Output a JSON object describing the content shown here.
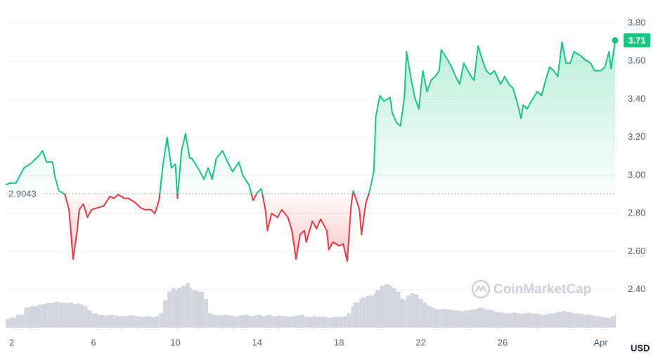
{
  "chart_data": {
    "type": "line",
    "currency": "USD",
    "watermark": "CoinMarketCap",
    "reference": 2.9043,
    "color_up": "#16c784",
    "color_down": "#ea3943",
    "volume_color": "#d3d6dc",
    "grid": true,
    "xlim": [
      1.7,
      31.5
    ],
    "ylim": [
      2.2,
      3.88
    ],
    "volume_ylim": [
      0,
      70
    ],
    "xticks": [
      2,
      6,
      10,
      14,
      18,
      22,
      26,
      {
        "value": 30.8,
        "label": "Apr"
      }
    ],
    "yticks": [
      {
        "value": 2.4,
        "label": "2.40"
      },
      {
        "value": 2.6,
        "label": "2.60"
      },
      {
        "value": 2.8,
        "label": "2.80"
      },
      {
        "value": 3.0,
        "label": "3.00"
      },
      {
        "value": 3.2,
        "label": "3.20"
      },
      {
        "value": 3.4,
        "label": "3.40"
      },
      {
        "value": 3.6,
        "label": "3.60"
      },
      {
        "value": 3.8,
        "label": "3.80"
      }
    ],
    "x": [
      1.7,
      1.9,
      2.2,
      2.6,
      2.9,
      3.3,
      3.5,
      3.7,
      4.0,
      4.1,
      4.3,
      4.6,
      4.8,
      5.0,
      5.2,
      5.3,
      5.5,
      5.7,
      5.9,
      6.2,
      6.5,
      6.8,
      7.0,
      7.2,
      7.5,
      7.7,
      8.0,
      8.3,
      8.5,
      8.8,
      9.0,
      9.2,
      9.4,
      9.6,
      9.8,
      10.0,
      10.1,
      10.3,
      10.5,
      10.7,
      10.8,
      11.1,
      11.4,
      11.6,
      11.8,
      12.0,
      12.3,
      12.6,
      12.8,
      13.1,
      13.3,
      13.6,
      13.8,
      14.0,
      14.2,
      14.4,
      14.5,
      14.7,
      15.0,
      15.2,
      15.5,
      15.7,
      15.9,
      16.1,
      16.3,
      16.4,
      16.7,
      16.9,
      17.1,
      17.4,
      17.5,
      17.7,
      18.0,
      18.2,
      18.4,
      18.6,
      18.7,
      19.0,
      19.1,
      19.3,
      19.5,
      19.7,
      19.8,
      20.0,
      20.2,
      20.5,
      20.6,
      20.8,
      21.0,
      21.2,
      21.3,
      21.5,
      21.7,
      21.9,
      22.1,
      22.3,
      22.5,
      22.7,
      22.9,
      23.0,
      23.3,
      23.5,
      23.7,
      23.9,
      24.1,
      24.4,
      24.6,
      24.8,
      25.0,
      25.2,
      25.4,
      25.6,
      25.9,
      26.1,
      26.3,
      26.5,
      26.7,
      26.9,
      27.0,
      27.2,
      27.4,
      27.7,
      27.9,
      28.1,
      28.3,
      28.5,
      28.7,
      28.9,
      29.1,
      29.3,
      29.5,
      29.8,
      30.0,
      30.3,
      30.5,
      30.8,
      31.0,
      31.2,
      31.3,
      31.5
    ],
    "values": [
      2.95,
      2.96,
      2.96,
      3.04,
      3.06,
      3.1,
      3.13,
      3.07,
      3.07,
      3.0,
      2.92,
      2.9,
      2.82,
      2.56,
      2.71,
      2.82,
      2.85,
      2.78,
      2.82,
      2.83,
      2.84,
      2.89,
      2.88,
      2.9,
      2.88,
      2.88,
      2.86,
      2.83,
      2.82,
      2.82,
      2.8,
      2.87,
      3.06,
      3.2,
      3.04,
      3.06,
      2.88,
      3.13,
      3.22,
      3.09,
      3.09,
      3.04,
      2.98,
      3.04,
      2.98,
      3.09,
      3.13,
      3.06,
      3.02,
      3.07,
      3.0,
      2.95,
      2.87,
      2.91,
      2.93,
      2.82,
      2.71,
      2.8,
      2.78,
      2.82,
      2.78,
      2.71,
      2.56,
      2.69,
      2.71,
      2.65,
      2.76,
      2.72,
      2.77,
      2.71,
      2.61,
      2.65,
      2.63,
      2.64,
      2.55,
      2.85,
      2.92,
      2.82,
      2.69,
      2.85,
      2.92,
      3.02,
      3.31,
      3.42,
      3.39,
      3.41,
      3.33,
      3.28,
      3.26,
      3.41,
      3.65,
      3.52,
      3.41,
      3.35,
      3.55,
      3.44,
      3.5,
      3.52,
      3.55,
      3.66,
      3.61,
      3.57,
      3.52,
      3.48,
      3.59,
      3.53,
      3.5,
      3.68,
      3.61,
      3.55,
      3.53,
      3.55,
      3.48,
      3.52,
      3.48,
      3.46,
      3.39,
      3.3,
      3.37,
      3.35,
      3.39,
      3.44,
      3.42,
      3.5,
      3.57,
      3.55,
      3.52,
      3.7,
      3.59,
      3.59,
      3.65,
      3.63,
      3.61,
      3.59,
      3.55,
      3.55,
      3.57,
      3.65,
      3.56,
      3.71
    ],
    "volume": [
      12,
      14,
      18,
      28,
      30,
      32,
      33,
      34,
      35,
      36,
      35,
      34,
      35,
      33,
      34,
      32,
      30,
      24,
      20,
      18,
      17,
      18,
      17,
      16,
      16,
      17,
      16,
      15,
      16,
      15,
      16,
      20,
      38,
      50,
      55,
      52,
      55,
      58,
      62,
      55,
      52,
      50,
      40,
      20,
      18,
      17,
      18,
      17,
      16,
      17,
      18,
      16,
      17,
      18,
      16,
      17,
      18,
      16,
      17,
      16,
      15,
      16,
      17,
      18,
      16,
      15,
      16,
      15,
      15,
      14,
      14,
      15,
      15,
      16,
      20,
      30,
      35,
      40,
      42,
      44,
      45,
      48,
      52,
      58,
      60,
      58,
      55,
      50,
      40,
      38,
      45,
      48,
      46,
      40,
      35,
      30,
      28,
      26,
      25,
      26,
      25,
      24,
      24,
      23,
      24,
      25,
      26,
      28,
      27,
      25,
      24,
      22,
      21,
      20,
      20,
      21,
      20,
      19,
      20,
      21,
      20,
      19,
      18,
      19,
      20,
      21,
      22,
      23,
      22,
      21,
      20,
      19,
      18,
      17,
      16,
      15,
      14,
      14,
      16,
      20
    ]
  }
}
